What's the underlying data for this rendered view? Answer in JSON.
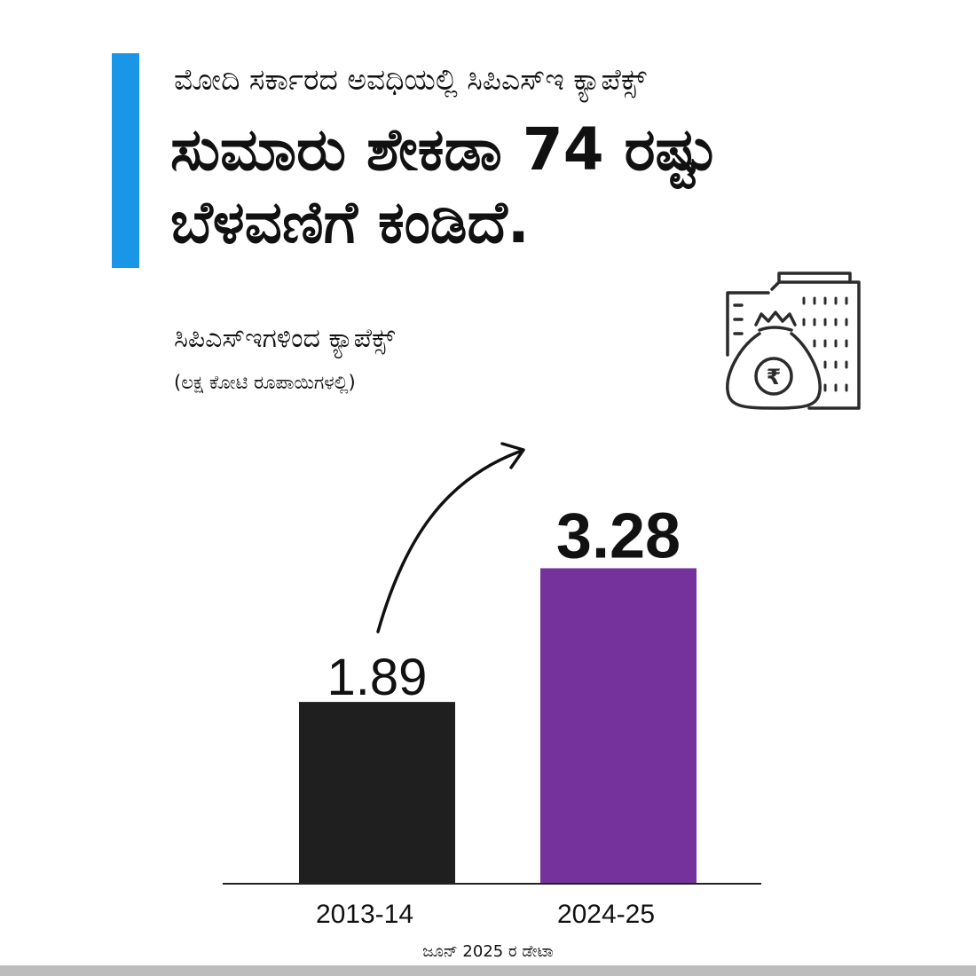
{
  "header": {
    "subtitle": "ಮೋದಿ ಸರ್ಕಾರದ ಅವಧಿಯಲ್ಲಿ ಸಿಪಿಎಸ್‌ಇ ಕ್ಯಾಪೆಕ್ಸ್",
    "headline": "ಸುಮಾರು ಶೇಕಡಾ 74 ರಷ್ಟು ಬೆಳವಣಿಗೆ ಕಂಡಿದೆ."
  },
  "footer": {
    "source": "ಜೂನ್ 2025 ರ ಡೇಟಾ"
  },
  "icons": {
    "illustration": "building-money-bag-rupee-icon"
  },
  "colors": {
    "accent": "#1a96e6",
    "bar_2013": "#1f1f1f",
    "bar_2024": "#76329c",
    "text": "#111111"
  },
  "chart_data": {
    "type": "bar",
    "title": "ಸಿಪಿಎಸ್‌ಇಗಳಿಂದ ಕ್ಯಾಪೆಕ್ಸ್",
    "ylabel": "(ಲಕ್ಷ ಕೋಟಿ ರೂಪಾಯಿಗಳಲ್ಲಿ)",
    "categories": [
      "2013-14",
      "2024-25"
    ],
    "values": [
      1.89,
      3.28
    ],
    "data_labels": [
      "1.89",
      "3.28"
    ],
    "bar_colors": [
      "#1f1f1f",
      "#76329c"
    ],
    "ylim": [
      0,
      3.5
    ],
    "grid": false,
    "legend": "none",
    "annotation": "growth arrow from 2013-14 to 2024-25"
  }
}
